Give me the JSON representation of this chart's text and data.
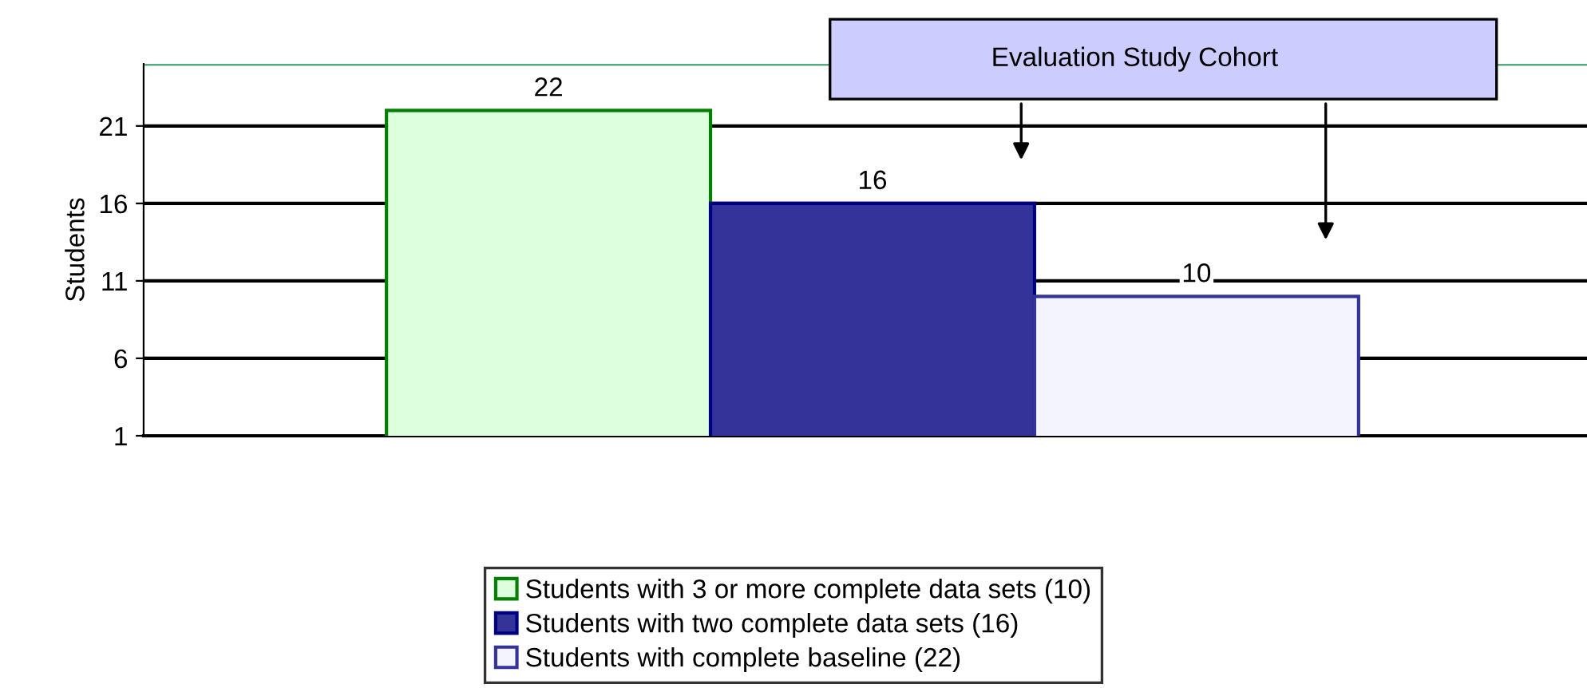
{
  "chart_data": {
    "type": "bar",
    "ylabel": "Students",
    "categories": [
      null
    ],
    "series": [
      {
        "name": "Students with 3 or more complete data sets (10)",
        "color": "#ddffdd",
        "values": [
          22
        ]
      },
      {
        "name": "Students with two complete data sets (16)",
        "color": "#333399",
        "values": [
          16
        ]
      },
      {
        "name": "Students with complete baseline (22)",
        "color": "#f4f4ff",
        "values": [
          10
        ]
      }
    ],
    "ylim": [
      1,
      25
    ],
    "yticks": [
      1,
      6,
      11,
      16,
      21
    ],
    "grid": "y",
    "data_labels": true,
    "legend": "bottom",
    "ref_lines": [
      {
        "axis": "y",
        "value": 25,
        "color": "#339966"
      }
    ],
    "annotations": [
      "Evaluation Study Cohort"
    ]
  }
}
